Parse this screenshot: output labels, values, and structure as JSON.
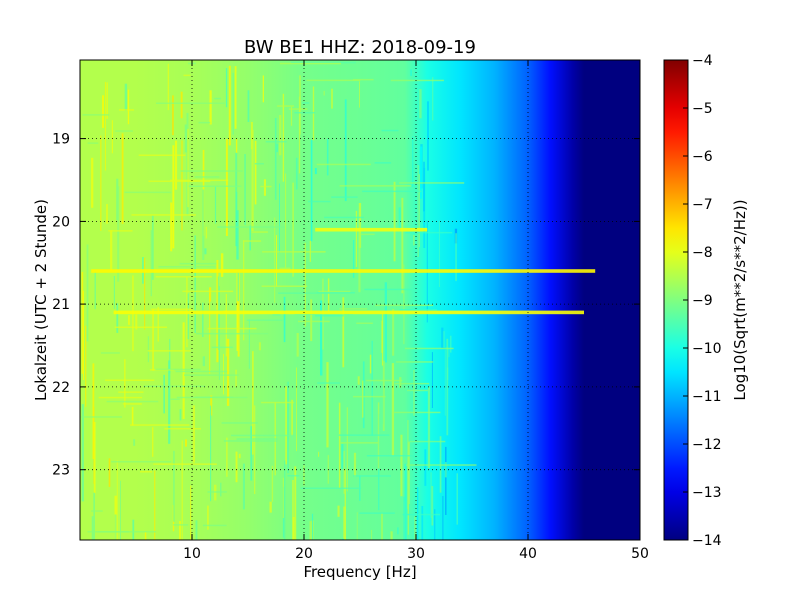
{
  "chart_data": {
    "type": "heatmap",
    "title": "BW BE1 HHZ: 2018-09-19",
    "xlabel": "Frequency [Hz]",
    "ylabel": "Lokalzeit (UTC + 2 Stunde)",
    "colorbar_label": "Log10(Sqrt(m**2/s**2/Hz))",
    "colormap": "jet",
    "xlim": [
      0,
      50
    ],
    "ylim": [
      23.85,
      18.05
    ],
    "x_ticks": [
      10,
      20,
      30,
      40,
      50
    ],
    "y_ticks": [
      19,
      20,
      21,
      22,
      23
    ],
    "clim": [
      -14,
      -4
    ],
    "colorbar_ticks": [
      -4,
      -5,
      -6,
      -7,
      -8,
      -9,
      -10,
      -11,
      -12,
      -13,
      -14
    ],
    "grid": true,
    "psd_profile": [
      {
        "f": 0,
        "v": -8.5
      },
      {
        "f": 5,
        "v": -8.5
      },
      {
        "f": 10,
        "v": -8.6
      },
      {
        "f": 15,
        "v": -8.8
      },
      {
        "f": 20,
        "v": -9.1
      },
      {
        "f": 25,
        "v": -9.2
      },
      {
        "f": 29,
        "v": -9.3
      },
      {
        "f": 31,
        "v": -10.0
      },
      {
        "f": 34,
        "v": -10.5
      },
      {
        "f": 37,
        "v": -11.0
      },
      {
        "f": 40,
        "v": -11.8
      },
      {
        "f": 42,
        "v": -12.6
      },
      {
        "f": 44,
        "v": -13.6
      },
      {
        "f": 45,
        "v": -14.0
      },
      {
        "f": 50,
        "v": -14.0
      }
    ],
    "horizontal_bands": [
      {
        "time": 20.1,
        "f_start": 21,
        "f_end": 31,
        "v": -7.9
      },
      {
        "time": 20.6,
        "f_start": 1,
        "f_end": 46,
        "v": -7.7
      },
      {
        "time": 21.1,
        "f_start": 3,
        "f_end": 45,
        "v": -7.8
      }
    ]
  }
}
